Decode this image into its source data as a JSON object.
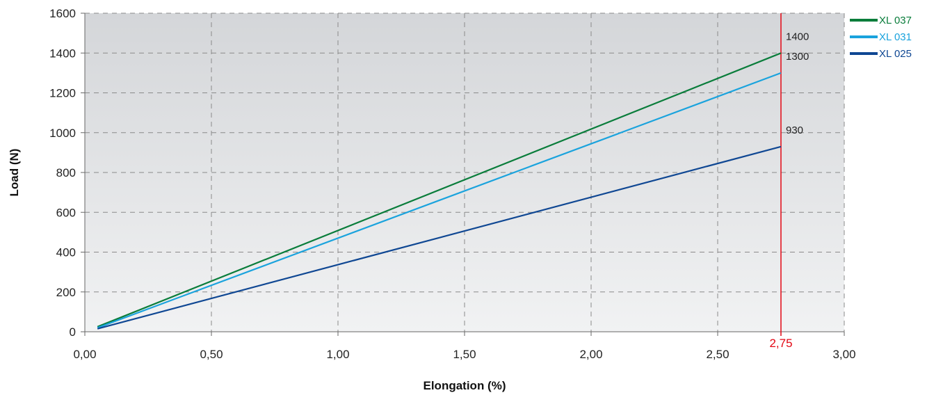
{
  "chart_data": {
    "type": "line",
    "xlabel": "Elongation (%)",
    "ylabel": "Load (N)",
    "xlim": [
      0,
      3
    ],
    "ylim": [
      0,
      1600
    ],
    "x_ticks": [
      "0,00",
      "0,50",
      "1,00",
      "1,50",
      "2,00",
      "2,50",
      "3,00"
    ],
    "x_tick_values": [
      0,
      0.5,
      1,
      1.5,
      2,
      2.5,
      3
    ],
    "y_ticks": [
      "0",
      "200",
      "400",
      "600",
      "800",
      "1000",
      "1200",
      "1400",
      "1600"
    ],
    "y_tick_values": [
      0,
      200,
      400,
      600,
      800,
      1000,
      1200,
      1400,
      1600
    ],
    "grid": true,
    "legend_position": "right, outside top",
    "vertical_marker": {
      "x": 2.75,
      "label": "2,75",
      "color": "#e30613"
    },
    "series": [
      {
        "name": "XL 037",
        "color": "#0a7d3b",
        "x": [
          0.05,
          2.75
        ],
        "y": [
          25,
          1400
        ],
        "end_label": "1400"
      },
      {
        "name": "XL 031",
        "color": "#1aa3dd",
        "x": [
          0.05,
          2.75
        ],
        "y": [
          20,
          1300
        ],
        "end_label": "1300"
      },
      {
        "name": "XL 025",
        "color": "#0f4793",
        "x": [
          0.05,
          2.75
        ],
        "y": [
          15,
          930
        ],
        "end_label": "930"
      }
    ]
  }
}
